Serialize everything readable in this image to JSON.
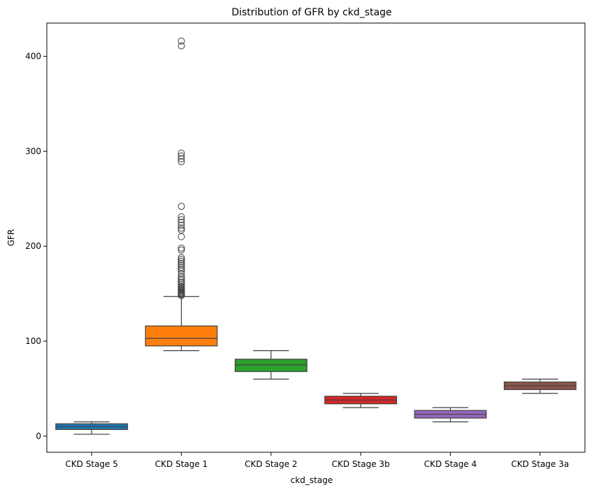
{
  "chart_data": {
    "type": "box",
    "title": "Distribution of GFR by ckd_stage",
    "xlabel": "ckd_stage",
    "ylabel": "GFR",
    "ylim": [
      -17,
      435
    ],
    "yticks": [
      0,
      100,
      200,
      300,
      400
    ],
    "grid": false,
    "categories": [
      "CKD Stage 5",
      "CKD Stage 1",
      "CKD Stage 2",
      "CKD Stage 3b",
      "CKD Stage 4",
      "CKD Stage 3a"
    ],
    "colors": [
      "#1f77b4",
      "#ff7f0e",
      "#2ca02c",
      "#d62728",
      "#9467bd",
      "#8c564b"
    ],
    "boxes": [
      {
        "category": "CKD Stage 5",
        "whisker_low": 2,
        "q1": 7,
        "median": 10,
        "q3": 13,
        "whisker_high": 15,
        "outliers": []
      },
      {
        "category": "CKD Stage 1",
        "whisker_low": 90,
        "q1": 95,
        "median": 103,
        "q3": 116,
        "whisker_high": 147,
        "outliers": [
          148,
          149,
          150,
          151,
          152,
          153,
          154,
          155,
          156,
          157,
          158,
          160,
          162,
          164,
          166,
          168,
          171,
          174,
          176,
          178,
          180,
          182,
          184,
          186,
          188,
          196,
          198,
          210,
          217,
          219,
          222,
          225,
          228,
          231,
          242,
          289,
          292,
          295,
          298,
          411,
          416
        ]
      },
      {
        "category": "CKD Stage 2",
        "whisker_low": 60,
        "q1": 68,
        "median": 75,
        "q3": 81,
        "whisker_high": 90,
        "outliers": []
      },
      {
        "category": "CKD Stage 3b",
        "whisker_low": 30,
        "q1": 34,
        "median": 38,
        "q3": 42,
        "whisker_high": 45,
        "outliers": []
      },
      {
        "category": "CKD Stage 4",
        "whisker_low": 15,
        "q1": 19,
        "median": 23,
        "q3": 27,
        "whisker_high": 30,
        "outliers": []
      },
      {
        "category": "CKD Stage 3a",
        "whisker_low": 45,
        "q1": 49,
        "median": 53,
        "q3": 57,
        "whisker_high": 60,
        "outliers": []
      }
    ]
  }
}
